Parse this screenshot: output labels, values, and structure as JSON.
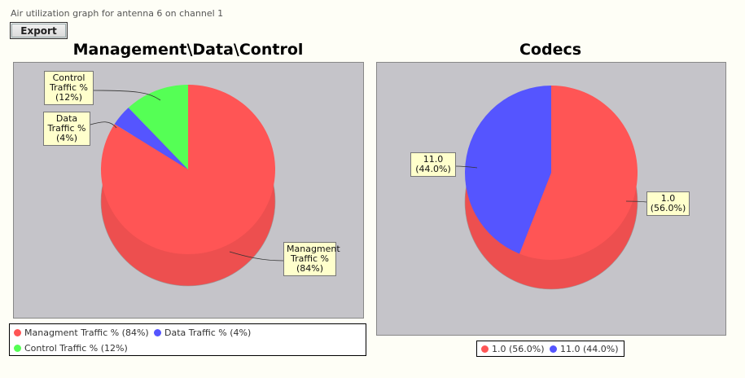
{
  "page": {
    "title": "Air utilization graph for antenna 6 on channel 1",
    "export_label": "Export"
  },
  "chart_data": [
    {
      "type": "pie",
      "title": "Management\\Data\\Control",
      "slices": [
        {
          "label": "Managment Traffic %",
          "value": 84,
          "legend": "Managment Traffic % (84%)",
          "callout": [
            "Managment",
            "Traffic %",
            "(84%)"
          ],
          "color": "#ff5555"
        },
        {
          "label": "Data Traffic %",
          "value": 4,
          "legend": "Data Traffic % (4%)",
          "callout": [
            "Data",
            "Traffic %",
            "(4%)"
          ],
          "color": "#5555ff"
        },
        {
          "label": "Control Traffic %",
          "value": 12,
          "legend": "Control Traffic % (12%)",
          "callout": [
            "Control",
            "Traffic %",
            "(12%)"
          ],
          "color": "#55ff55"
        }
      ]
    },
    {
      "type": "pie",
      "title": "Codecs",
      "slices": [
        {
          "label": "1.0",
          "value": 56,
          "legend": "1.0 (56.0%)",
          "callout": [
            "1.0",
            "(56.0%)"
          ],
          "color": "#ff5555"
        },
        {
          "label": "11.0",
          "value": 44,
          "legend": "11.0 (44.0%)",
          "callout": [
            "11.0",
            "(44.0%)"
          ],
          "color": "#5555ff"
        }
      ]
    }
  ]
}
